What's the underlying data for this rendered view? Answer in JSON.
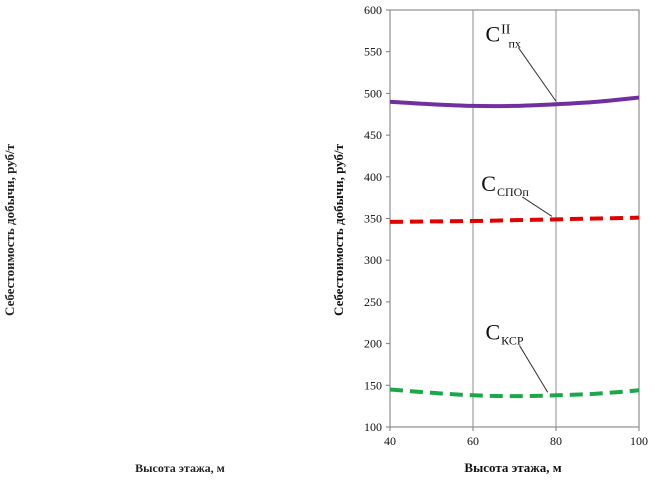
{
  "left_fragment": {
    "ylabel": "Себестоимость добычи, руб/т",
    "xlabel": "Высота этажа, м"
  },
  "chart_data": {
    "type": "line",
    "xlabel": "Высота этажа, м",
    "ylabel": "Себестоимость добычи, руб/т",
    "xlim": [
      40,
      100
    ],
    "ylim": [
      100,
      600
    ],
    "xticks": [
      40,
      60,
      80,
      100
    ],
    "yticks": [
      100,
      150,
      200,
      250,
      300,
      350,
      400,
      450,
      500,
      550,
      600
    ],
    "vertical_gridlines_at": [
      60,
      80
    ],
    "series": [
      {
        "id": "c-pkh",
        "label_main": "C",
        "label_sup": "II",
        "label_sub": "пх",
        "color": "#7030a0",
        "dash": "solid",
        "x": [
          40,
          50,
          60,
          70,
          80,
          90,
          100
        ],
        "y": [
          490,
          487,
          485,
          485,
          487,
          490,
          495
        ]
      },
      {
        "id": "c-spo",
        "label_main": "C",
        "label_sup": "",
        "label_sub": "СПОп",
        "color": "#e00000",
        "dash": "dashed",
        "x": [
          40,
          50,
          60,
          70,
          80,
          90,
          100
        ],
        "y": [
          346,
          346.5,
          347,
          348,
          349,
          350,
          351
        ]
      },
      {
        "id": "c-ksr",
        "label_main": "C",
        "label_sup": "",
        "label_sub": "КСР",
        "color": "#1aa84a",
        "dash": "dashed",
        "x": [
          40,
          50,
          60,
          70,
          80,
          90,
          100
        ],
        "y": [
          145,
          141,
          138,
          137,
          138,
          140,
          144
        ]
      }
    ],
    "annotations": [
      {
        "series": "c-pkh",
        "label_x": 63,
        "label_y": 562,
        "point_x": 80,
        "point_y": 487
      },
      {
        "series": "c-spo",
        "label_x": 62,
        "label_y": 383,
        "point_x": 79,
        "point_y": 349
      },
      {
        "series": "c-ksr",
        "label_x": 63,
        "label_y": 205,
        "point_x": 78,
        "point_y": 138
      }
    ]
  }
}
